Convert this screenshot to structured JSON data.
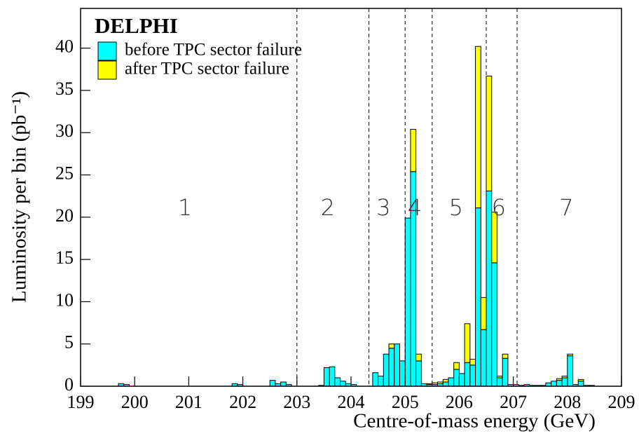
{
  "chart_data": {
    "type": "histogram",
    "xlabel": "Centre-of-mass energy (GeV)",
    "ylabel": "Luminosity per bin (pb⁻¹)",
    "legend_title": "DELPHI",
    "legend": "upper left",
    "bins": [
      199,
      199.1,
      199.2,
      199.3,
      199.4,
      199.5,
      199.6,
      199.7,
      199.8,
      199.9,
      200,
      200.1,
      200.2,
      200.3,
      200.4,
      200.5,
      200.6,
      200.7,
      200.8,
      200.9,
      201,
      201.1,
      201.2,
      201.3,
      201.4,
      201.5,
      201.6,
      201.7,
      201.8,
      201.9,
      202,
      202.1,
      202.2,
      202.3,
      202.4,
      202.5,
      202.6,
      202.7,
      202.8,
      202.9,
      203,
      203.1,
      203.2,
      203.3,
      203.4,
      203.5,
      203.6,
      203.7,
      203.8,
      203.9,
      204,
      204.1,
      204.2,
      204.3,
      204.4,
      204.5,
      204.6,
      204.7,
      204.8,
      204.9,
      205,
      205.1,
      205.2,
      205.3,
      205.4,
      205.5,
      205.6,
      205.7,
      205.8,
      205.9,
      206,
      206.1,
      206.2,
      206.3,
      206.4,
      206.5,
      206.6,
      206.7,
      206.8,
      206.9,
      207,
      207.1,
      207.2,
      207.3,
      207.4,
      207.5,
      207.6,
      207.7,
      207.8,
      207.9,
      208,
      208.1,
      208.2,
      208.3,
      208.4,
      208.5,
      208.6,
      208.7,
      208.8,
      208.9,
      209
    ],
    "series": [
      {
        "name": "before TPC sector failure",
        "color": "#00ffff",
        "values": [
          0,
          0,
          0,
          0,
          0,
          0,
          0,
          0.3,
          0.2,
          0,
          0,
          0,
          0,
          0,
          0,
          0,
          0,
          0,
          0,
          0,
          0,
          0,
          0,
          0,
          0,
          0,
          0,
          0,
          0.3,
          0.2,
          0,
          0,
          0,
          0,
          0,
          0.7,
          0.3,
          0.5,
          0.2,
          0,
          0,
          0,
          0,
          0,
          0.1,
          2.2,
          2.3,
          1.0,
          0.6,
          0.3,
          0.2,
          0,
          0,
          0,
          1.6,
          1.2,
          3.8,
          4.5,
          5.0,
          3.0,
          19.9,
          25.4,
          3.0,
          0.3,
          0.2,
          0.2,
          0.3,
          0.5,
          1.0,
          2.0,
          1.5,
          2.8,
          2.5,
          21.1,
          6.7,
          23.1,
          14.6,
          1.0,
          3.3,
          0.2,
          0.2,
          0.1,
          0.2,
          0.1,
          0.1,
          0.1,
          0.4,
          0.6,
          0.7,
          1.0,
          3.6,
          0.2,
          0.6,
          0.1,
          0.1,
          0,
          0,
          0,
          0,
          0
        ]
      },
      {
        "name": "after TPC sector failure",
        "color": "#ffff00",
        "values": [
          0,
          0,
          0,
          0,
          0,
          0,
          0,
          0,
          0,
          0,
          0,
          0,
          0,
          0,
          0,
          0,
          0,
          0,
          0,
          0,
          0,
          0,
          0,
          0,
          0,
          0,
          0,
          0,
          0,
          0,
          0,
          0,
          0,
          0,
          0,
          0,
          0,
          0,
          0,
          0,
          0,
          0,
          0,
          0,
          0,
          0,
          0,
          0,
          0,
          0,
          0,
          0,
          0,
          0,
          0,
          0,
          0,
          0.5,
          0,
          0,
          0,
          5.0,
          0.8,
          0,
          0.1,
          0.2,
          0.2,
          0.3,
          0,
          0.8,
          0,
          4.6,
          0.7,
          19.1,
          3.8,
          13.6,
          6.0,
          0.2,
          0.5,
          0,
          0,
          0,
          0,
          0,
          0,
          0,
          0,
          0,
          0.2,
          0.2,
          0.2,
          0,
          0.2,
          0,
          0,
          0,
          0,
          0,
          0,
          0
        ]
      }
    ],
    "stacked": true,
    "xlim": [
      199,
      209
    ],
    "ylim": [
      0,
      44.7
    ],
    "xticks": [
      199,
      200,
      201,
      202,
      203,
      204,
      205,
      206,
      207,
      208,
      209
    ],
    "yticks": [
      0,
      5,
      10,
      15,
      20,
      25,
      30,
      35,
      40
    ],
    "vlines": [
      203.0,
      204.33,
      205.0,
      205.5,
      206.5,
      207.07
    ],
    "annotations": [
      {
        "text": "1",
        "x": 200.93,
        "y": 21
      },
      {
        "text": "2",
        "x": 203.57,
        "y": 21
      },
      {
        "text": "3",
        "x": 204.6,
        "y": 21
      },
      {
        "text": "4",
        "x": 205.18,
        "y": 21
      },
      {
        "text": "5",
        "x": 205.94,
        "y": 21
      },
      {
        "text": "6",
        "x": 206.73,
        "y": 21
      },
      {
        "text": "7",
        "x": 207.98,
        "y": 21
      }
    ]
  }
}
